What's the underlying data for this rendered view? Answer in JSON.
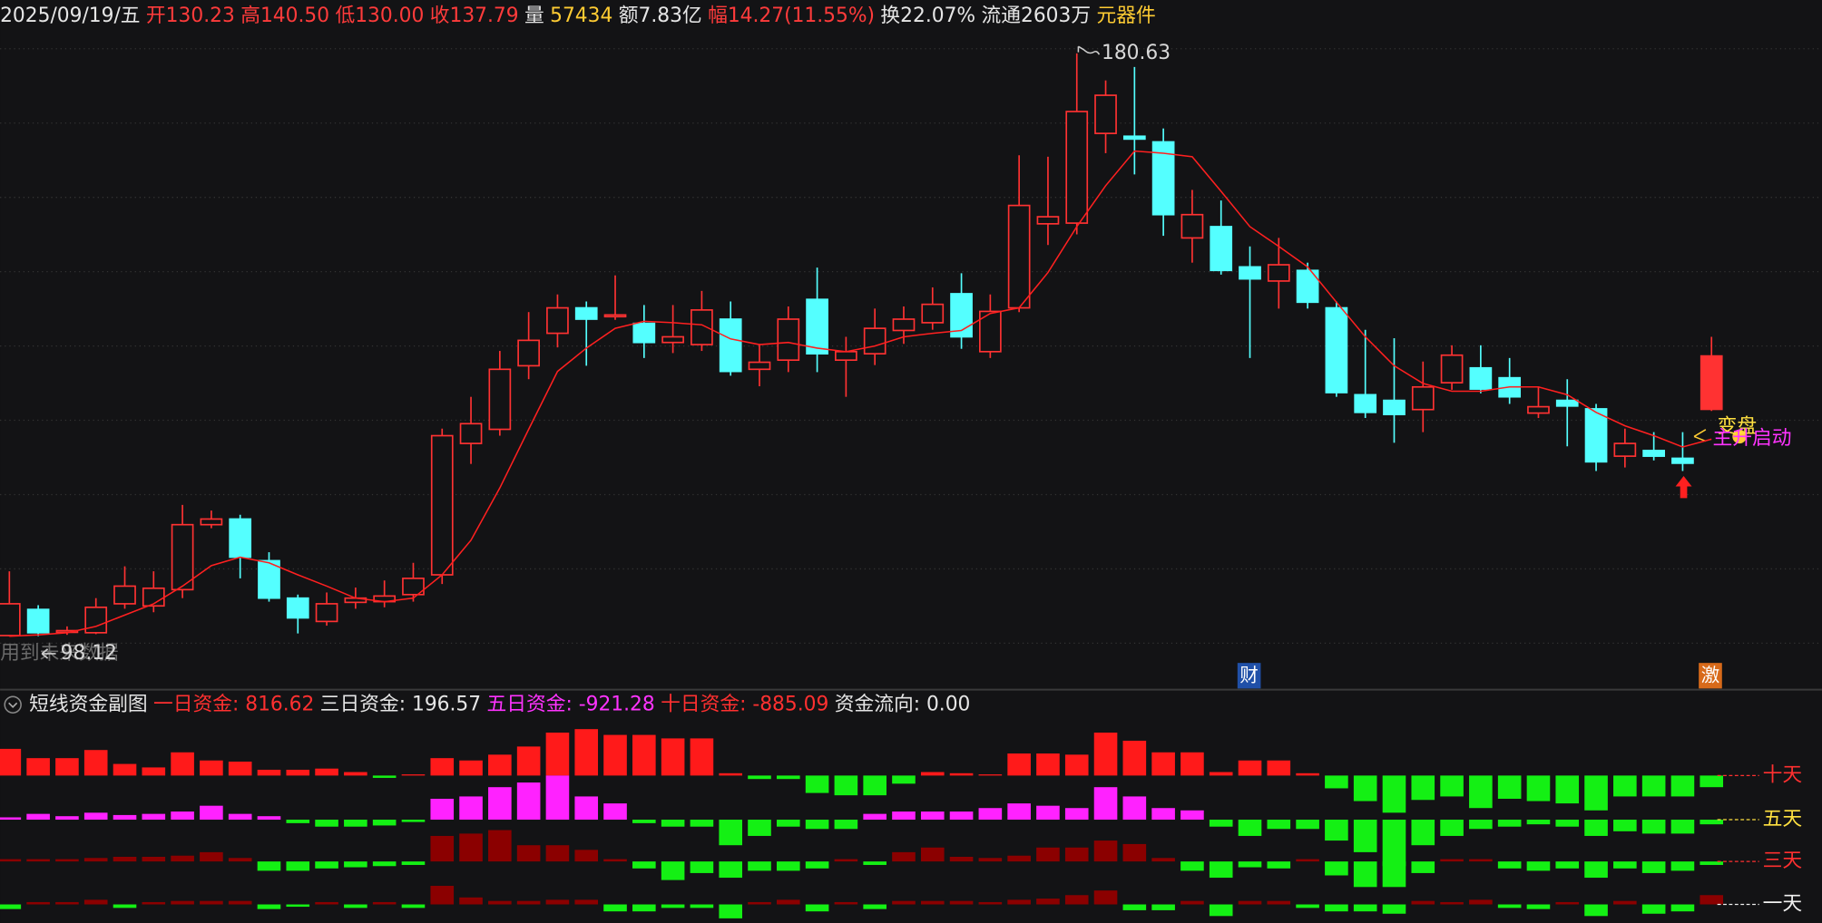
{
  "chart_data": [
    {
      "type": "candlestick",
      "header": [
        {
          "text": "2025/09/19/五",
          "color": "#e6e6e6"
        },
        {
          "text": "开130.23",
          "color": "#ff3b3b"
        },
        {
          "text": "高140.50",
          "color": "#ff3b3b"
        },
        {
          "text": "低130.00",
          "color": "#ff3b3b"
        },
        {
          "text": "收137.79",
          "color": "#ff3b3b"
        },
        {
          "text": "量",
          "color": "#e6e6e6"
        },
        {
          "text": "57434",
          "color": "#ffcc33"
        },
        {
          "text": "额7.83亿",
          "color": "#e6e6e6"
        },
        {
          "text": "幅14.27(11.55%)",
          "color": "#ff3b3b"
        },
        {
          "text": "换22.07%",
          "color": "#e6e6e6"
        },
        {
          "text": "流通2603万",
          "color": "#e6e6e6"
        },
        {
          "text": "元器件",
          "color": "#ffcc33"
        }
      ],
      "up_color": "#ff3232",
      "down_color": "#54ffff",
      "ylim": [
        91.2,
        188.19
      ],
      "ohlc": [
        [
          98.2,
          107.3,
          98.1,
          102.7
        ],
        [
          101.9,
          102.5,
          98.12,
          98.6
        ],
        [
          98.8,
          99.5,
          98.3,
          98.9
        ],
        [
          98.6,
          103.5,
          98.4,
          102.2
        ],
        [
          102.7,
          108.0,
          102.0,
          105.2
        ],
        [
          102.4,
          107.3,
          101.5,
          104.9
        ],
        [
          104.7,
          116.7,
          103.5,
          113.9
        ],
        [
          113.9,
          115.9,
          113.4,
          114.7
        ],
        [
          114.7,
          115.3,
          106.3,
          109.3
        ],
        [
          108.8,
          110.0,
          103.0,
          103.5
        ],
        [
          103.5,
          104.0,
          98.5,
          100.7
        ],
        [
          100.2,
          104.3,
          99.6,
          102.7
        ],
        [
          102.9,
          105.0,
          102.0,
          103.5
        ],
        [
          103.0,
          106.0,
          102.2,
          103.8
        ],
        [
          104.0,
          108.5,
          103.0,
          106.3
        ],
        [
          106.8,
          127.5,
          105.5,
          126.5
        ],
        [
          125.4,
          132.0,
          122.5,
          128.2
        ],
        [
          127.4,
          138.5,
          126.5,
          135.9
        ],
        [
          136.4,
          144.0,
          134.5,
          140.0
        ],
        [
          141.0,
          146.5,
          139.0,
          144.6
        ],
        [
          144.6,
          145.5,
          136.4,
          143.0
        ],
        [
          143.5,
          149.2,
          142.9,
          143.6
        ],
        [
          142.4,
          145.0,
          137.5,
          139.7
        ],
        [
          139.7,
          145.0,
          138.2,
          140.5
        ],
        [
          139.4,
          147.0,
          138.5,
          144.3
        ],
        [
          143.0,
          145.5,
          135.0,
          135.6
        ],
        [
          135.9,
          139.5,
          133.5,
          136.9
        ],
        [
          137.2,
          144.8,
          135.5,
          143.0
        ],
        [
          145.8,
          150.3,
          135.5,
          138.1
        ],
        [
          137.2,
          140.5,
          132.0,
          138.4
        ],
        [
          138.1,
          144.5,
          136.5,
          141.7
        ],
        [
          141.4,
          144.8,
          139.5,
          143.0
        ],
        [
          142.5,
          147.5,
          141.5,
          145.1
        ],
        [
          146.6,
          149.5,
          138.8,
          140.5
        ],
        [
          138.4,
          146.5,
          137.5,
          144.1
        ],
        [
          144.6,
          166.2,
          144.0,
          159.1
        ],
        [
          156.5,
          166.0,
          153.5,
          157.5
        ],
        [
          156.6,
          180.63,
          155.0,
          172.4
        ],
        [
          169.3,
          176.8,
          166.5,
          174.7
        ],
        [
          168.9,
          178.7,
          163.5,
          168.5
        ],
        [
          168.1,
          170.0,
          154.8,
          157.8
        ],
        [
          154.5,
          161.3,
          151.0,
          157.8
        ],
        [
          156.1,
          159.8,
          149.3,
          149.9
        ],
        [
          150.4,
          153.3,
          137.5,
          148.7
        ],
        [
          148.4,
          154.5,
          144.5,
          150.7
        ],
        [
          149.9,
          151.0,
          144.5,
          145.4
        ],
        [
          144.6,
          145.5,
          132.0,
          132.6
        ],
        [
          132.3,
          141.5,
          129.0,
          129.8
        ],
        [
          131.5,
          140.3,
          125.5,
          129.5
        ],
        [
          130.2,
          137.0,
          127.0,
          133.4
        ],
        [
          134.0,
          139.3,
          133.0,
          137.9
        ],
        [
          136.1,
          139.3,
          132.5,
          133.1
        ],
        [
          134.7,
          137.5,
          131.0,
          132.0
        ],
        [
          129.7,
          133.5,
          129.0,
          130.6
        ],
        [
          131.5,
          134.5,
          125.0,
          130.7
        ],
        [
          130.3,
          131.0,
          121.5,
          122.8
        ],
        [
          123.6,
          127.5,
          122.0,
          125.4
        ],
        [
          124.4,
          127.0,
          123.0,
          123.6
        ],
        [
          123.3,
          127.0,
          121.5,
          122.6
        ],
        [
          130.23,
          140.5,
          130.0,
          137.79
        ]
      ],
      "ma": {
        "color": "#ff2020",
        "values": [
          98.1,
          98.3,
          98.6,
          99.5,
          101.1,
          102.7,
          105.2,
          108.1,
          109.3,
          108.5,
          106.8,
          105.2,
          103.5,
          103.0,
          103.5,
          106.8,
          111.7,
          119.1,
          127.4,
          135.6,
          138.9,
          141.7,
          142.7,
          142.5,
          142.2,
          140.2,
          139.4,
          139.7,
          138.9,
          138.4,
          139.2,
          140.5,
          141.0,
          141.4,
          143.8,
          144.6,
          149.6,
          156.1,
          161.9,
          166.8,
          166.5,
          166.0,
          161.1,
          156.1,
          153.3,
          150.4,
          145.4,
          140.5,
          136.4,
          133.9,
          132.8,
          132.8,
          133.4,
          133.4,
          132.3,
          129.8,
          127.9,
          126.5,
          124.9,
          126.0
        ]
      },
      "high_label": 180.63,
      "low_label": 98.12,
      "watermark": "用到未来数据",
      "markers": [
        "财",
        "激"
      ],
      "signals": [
        "变盘",
        "主升启动"
      ]
    },
    {
      "type": "bar-rows",
      "header": [
        {
          "text": "短线资金副图",
          "color": "#e6e6e6"
        },
        {
          "text": "一日资金: 816.62",
          "color": "#ff3030"
        },
        {
          "text": "三日资金: 196.57",
          "color": "#e6e6e6"
        },
        {
          "text": "五日资金: -921.28",
          "color": "#ff33ff"
        },
        {
          "text": "十日资金: -885.09",
          "color": "#ff3030"
        },
        {
          "text": "资金流向: 0.00",
          "color": "#e6e6e6"
        }
      ],
      "neg_color": "#14f014",
      "rows": [
        {
          "name": "十天",
          "color": "#ff1a1a",
          "label_color": "#ff3030",
          "values": [
            23,
            15,
            15,
            22,
            10,
            7,
            20,
            13,
            12,
            5,
            5,
            6,
            3,
            -2,
            1,
            15,
            13,
            18,
            25,
            37,
            40,
            35,
            35,
            32,
            32,
            2,
            -3,
            -3,
            -15,
            -17,
            -17,
            -7,
            3,
            2,
            1,
            19,
            19,
            18,
            37,
            30,
            20,
            20,
            3,
            13,
            13,
            2,
            -11,
            -22,
            -32,
            -21,
            -18,
            -28,
            -20,
            -22,
            -24,
            -30,
            -18,
            -18,
            -18,
            -10
          ]
        },
        {
          "name": "五天",
          "color": "#ff22ff",
          "label_color": "#ffe040",
          "values": [
            2,
            5,
            3,
            6,
            4,
            5,
            7,
            12,
            5,
            3,
            -3,
            -6,
            -6,
            -5,
            -2,
            18,
            20,
            28,
            32,
            38,
            20,
            14,
            -3,
            -6,
            -6,
            -22,
            -14,
            -6,
            -8,
            -8,
            5,
            7,
            7,
            7,
            10,
            14,
            12,
            10,
            28,
            20,
            10,
            8,
            -6,
            -14,
            -8,
            -8,
            -18,
            -28,
            -40,
            -22,
            -14,
            -8,
            -6,
            -4,
            -6,
            -14,
            -10,
            -12,
            -12,
            -4
          ]
        },
        {
          "name": "三天",
          "color": "#8b0000",
          "label_color": "#ff3030",
          "values": [
            2,
            2,
            2,
            3,
            4,
            4,
            5,
            8,
            3,
            -8,
            -8,
            -6,
            -5,
            -4,
            -3,
            22,
            24,
            27,
            14,
            14,
            10,
            2,
            -6,
            -16,
            -10,
            -14,
            -8,
            -8,
            -6,
            2,
            -3,
            8,
            12,
            4,
            3,
            5,
            12,
            12,
            18,
            15,
            3,
            -8,
            -14,
            -5,
            -6,
            2,
            -12,
            -22,
            -22,
            -10,
            2,
            2,
            -6,
            -8,
            -6,
            -14,
            -6,
            -10,
            -8,
            -3
          ]
        },
        {
          "name": "一天",
          "color": "#8b0000",
          "label_color": "#f0f0f0",
          "values": [
            -4,
            2,
            2,
            4,
            -3,
            2,
            3,
            3,
            3,
            -4,
            -2,
            2,
            -3,
            2,
            -3,
            16,
            6,
            3,
            3,
            4,
            4,
            -6,
            -6,
            -3,
            -3,
            -12,
            2,
            4,
            -6,
            2,
            -4,
            3,
            3,
            3,
            2,
            4,
            5,
            8,
            12,
            -5,
            -5,
            3,
            -10,
            3,
            3,
            -3,
            -6,
            -6,
            -8,
            3,
            2,
            4,
            -3,
            -4,
            2,
            -10,
            3,
            -8,
            -6,
            8
          ]
        }
      ]
    }
  ]
}
